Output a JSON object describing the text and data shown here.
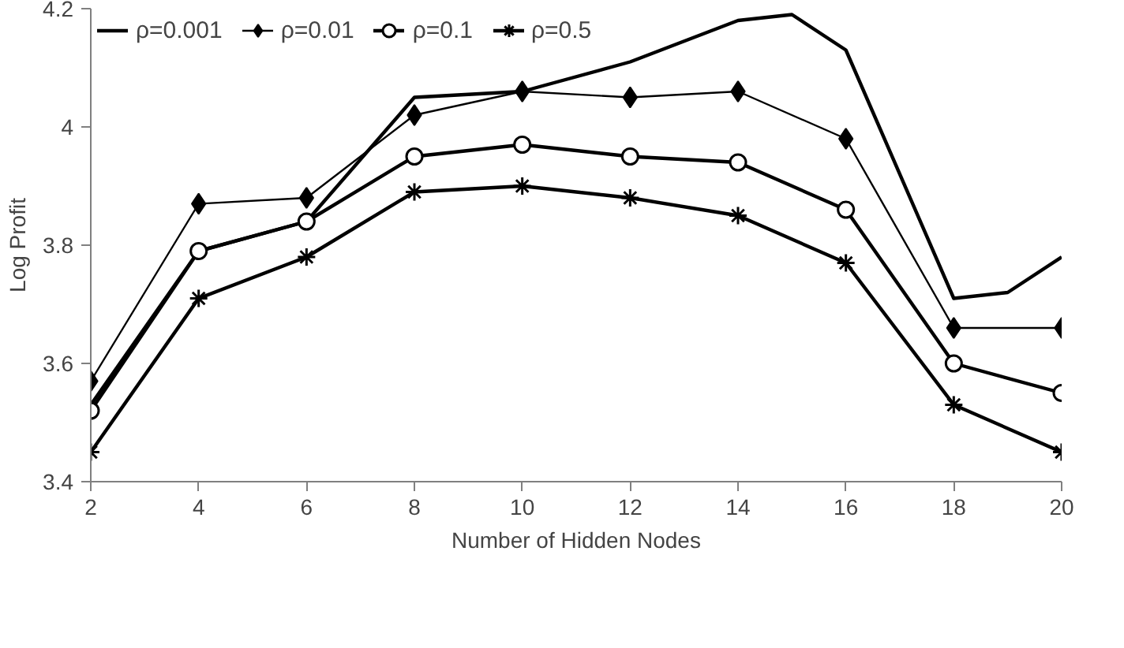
{
  "chart_data": {
    "type": "line",
    "xlabel": "Number of Hidden Nodes",
    "ylabel": "Log Profit",
    "x": [
      2,
      4,
      6,
      8,
      10,
      12,
      14,
      16,
      18,
      20
    ],
    "series": [
      {
        "name": "ρ=0.001",
        "color": "#000000",
        "marker": "none",
        "x": [
          2,
          4,
          6,
          8,
          10,
          12,
          14,
          15,
          16,
          18,
          19,
          20
        ],
        "values": [
          3.53,
          3.79,
          3.84,
          4.05,
          4.06,
          4.11,
          4.18,
          4.19,
          4.13,
          3.71,
          3.72,
          3.78
        ]
      },
      {
        "name": "ρ=0.01",
        "color": "#000000",
        "marker": "diamond",
        "values": [
          3.57,
          3.87,
          3.88,
          4.02,
          4.06,
          4.05,
          4.06,
          3.98,
          3.66,
          3.66
        ]
      },
      {
        "name": "ρ=0.1",
        "color": "#000000",
        "marker": "circle",
        "values": [
          3.52,
          3.79,
          3.84,
          3.95,
          3.97,
          3.95,
          3.94,
          3.86,
          3.6,
          3.55
        ]
      },
      {
        "name": "ρ=0.5",
        "color": "#000000",
        "marker": "cross",
        "values": [
          3.45,
          3.71,
          3.78,
          3.89,
          3.9,
          3.88,
          3.85,
          3.77,
          3.53,
          3.45
        ]
      }
    ],
    "xlim": [
      2,
      20
    ],
    "xticks": [
      2,
      4,
      6,
      8,
      10,
      12,
      14,
      16,
      18,
      20
    ],
    "ylim": [
      3.4,
      4.2
    ],
    "yticks": [
      3.4,
      3.6,
      3.8,
      {
        "value": 4,
        "label": "4"
      },
      4.2
    ],
    "grid": false,
    "legend": "top",
    "line_style": "solid"
  }
}
